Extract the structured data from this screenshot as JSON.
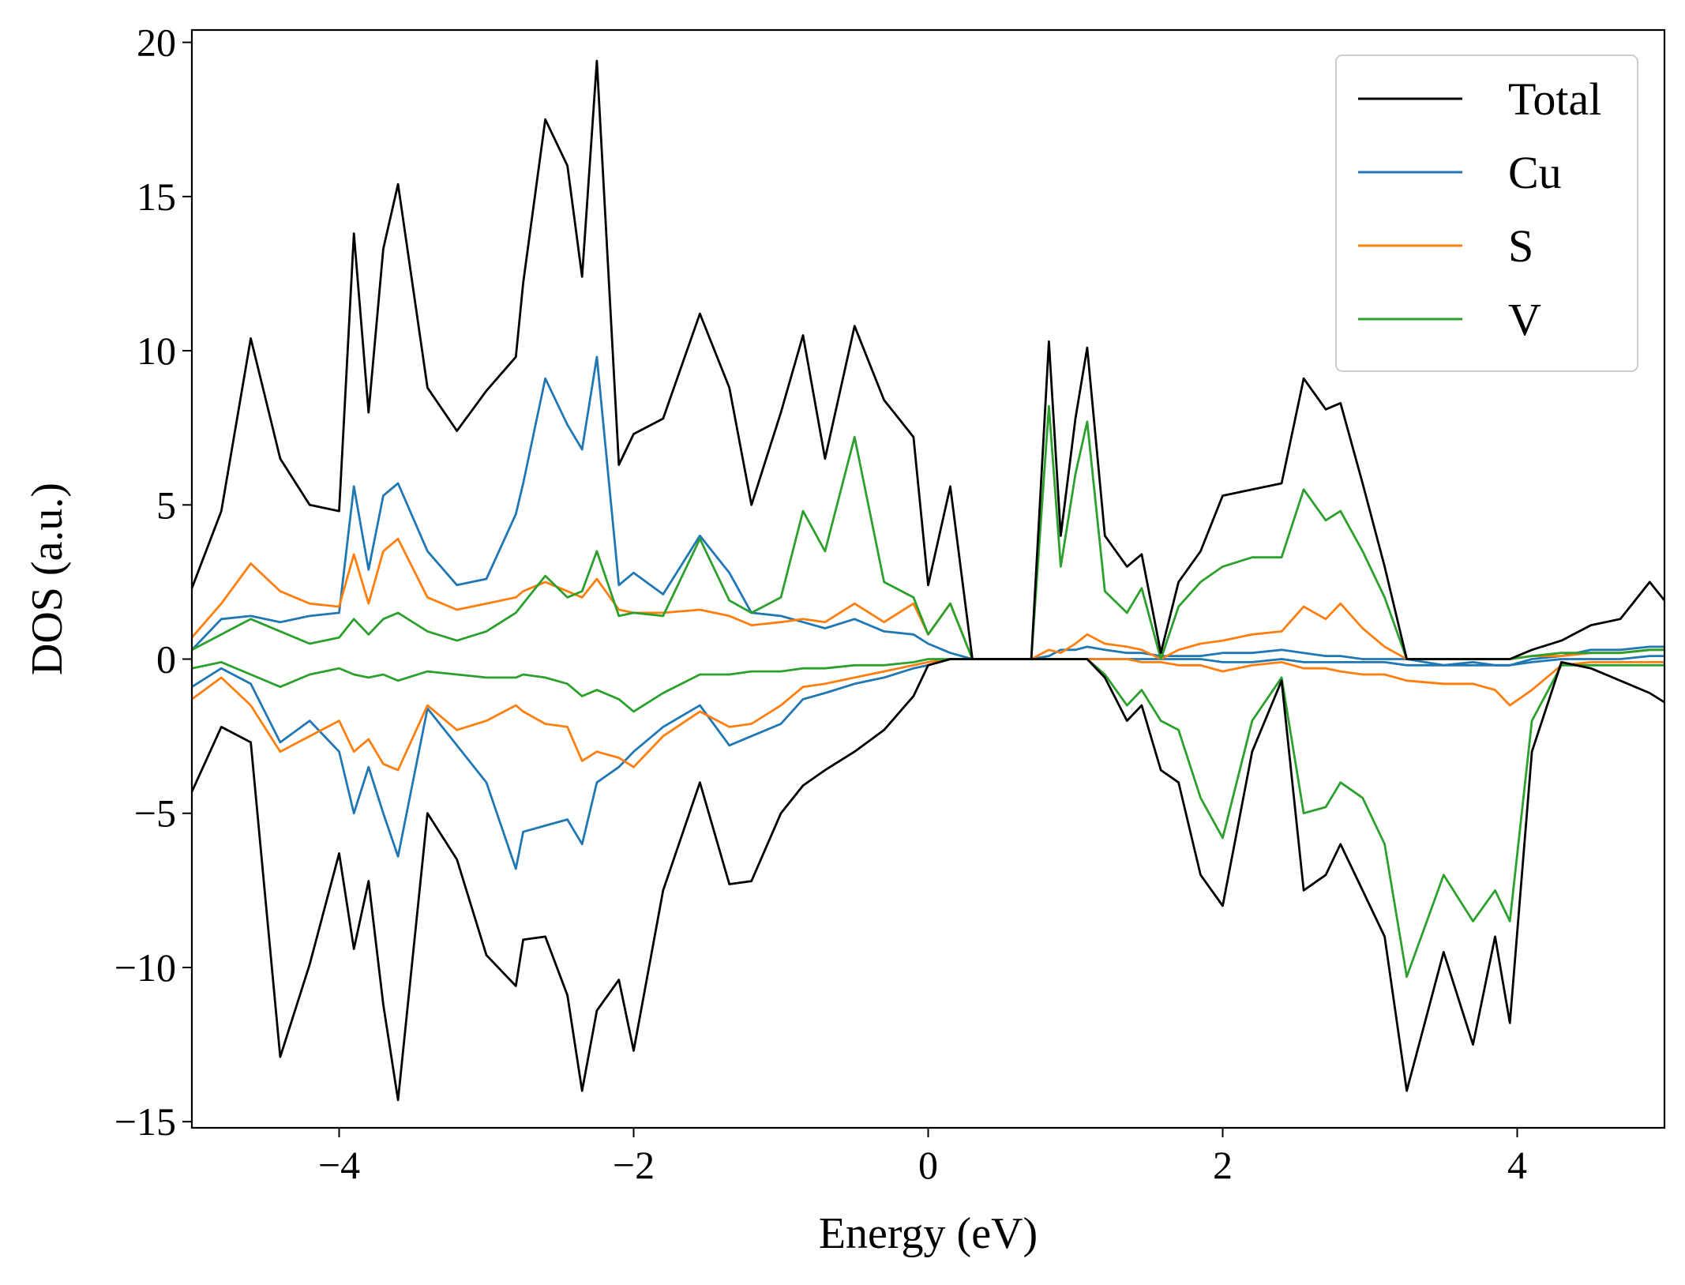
{
  "chart_data": {
    "type": "line",
    "xlabel": "Energy (eV)",
    "ylabel": "DOS (a.u.)",
    "xlim": [
      -5,
      5
    ],
    "ylim": [
      -15.2,
      20.4
    ],
    "xticks": [
      {
        "value": -4,
        "label": "−4"
      },
      {
        "value": -2,
        "label": "−2"
      },
      {
        "value": 0,
        "label": "0"
      },
      {
        "value": 2,
        "label": "2"
      },
      {
        "value": 4,
        "label": "4"
      }
    ],
    "yticks": [
      {
        "value": 20,
        "label": "20"
      },
      {
        "value": 15,
        "label": "15"
      },
      {
        "value": 10,
        "label": "10"
      },
      {
        "value": 5,
        "label": "5"
      },
      {
        "value": 0,
        "label": "0"
      },
      {
        "value": -5,
        "label": "−5"
      },
      {
        "value": -10,
        "label": "−10"
      },
      {
        "value": -15,
        "label": "−15"
      }
    ],
    "legend_position": "top-right",
    "grid": false,
    "x": [
      -5.0,
      -4.8,
      -4.6,
      -4.4,
      -4.2,
      -4.0,
      -3.9,
      -3.8,
      -3.7,
      -3.6,
      -3.4,
      -3.2,
      -3.0,
      -2.8,
      -2.75,
      -2.6,
      -2.45,
      -2.35,
      -2.25,
      -2.1,
      -2.0,
      -1.8,
      -1.55,
      -1.35,
      -1.2,
      -1.0,
      -0.85,
      -0.7,
      -0.5,
      -0.3,
      -0.1,
      0.0,
      0.15,
      0.3,
      0.5,
      0.7,
      0.82,
      0.9,
      1.0,
      1.08,
      1.2,
      1.35,
      1.45,
      1.58,
      1.7,
      1.85,
      2.0,
      2.2,
      2.4,
      2.55,
      2.7,
      2.8,
      2.95,
      3.1,
      3.25,
      3.5,
      3.7,
      3.85,
      3.95,
      4.1,
      4.3,
      4.5,
      4.7,
      4.9,
      5.0
    ],
    "series": [
      {
        "name": "Total",
        "color": "#000000",
        "up": [
          2.3,
          4.8,
          10.4,
          6.5,
          5.0,
          4.8,
          13.8,
          8.0,
          13.3,
          15.4,
          8.8,
          7.4,
          8.7,
          9.8,
          12.2,
          17.5,
          16.0,
          12.4,
          19.4,
          6.3,
          7.3,
          7.8,
          11.2,
          8.8,
          5.0,
          8.0,
          10.5,
          6.5,
          10.8,
          8.4,
          7.2,
          2.4,
          5.6,
          0.0,
          0.0,
          0.0,
          10.3,
          4.0,
          7.8,
          10.1,
          4.0,
          3.0,
          3.4,
          0.2,
          2.5,
          3.5,
          5.3,
          5.5,
          5.7,
          9.1,
          8.1,
          8.3,
          5.7,
          3.0,
          0.0,
          0.0,
          0.0,
          0.0,
          0.0,
          0.3,
          0.6,
          1.1,
          1.3,
          2.5,
          1.9
        ],
        "down": [
          -4.3,
          -2.2,
          -2.7,
          -12.9,
          -9.9,
          -6.3,
          -9.4,
          -7.2,
          -11.2,
          -14.3,
          -5.0,
          -6.5,
          -9.6,
          -10.6,
          -9.1,
          -9.0,
          -10.9,
          -14.0,
          -11.4,
          -10.4,
          -12.7,
          -7.5,
          -4.0,
          -7.3,
          -7.2,
          -5.0,
          -4.1,
          -3.6,
          -3.0,
          -2.3,
          -1.2,
          -0.2,
          0.0,
          0.0,
          0.0,
          0.0,
          0.0,
          0.0,
          0.0,
          0.0,
          -0.6,
          -2.0,
          -1.5,
          -3.6,
          -4.0,
          -7.0,
          -8.0,
          -3.0,
          -0.7,
          -7.5,
          -7.0,
          -6.0,
          -7.5,
          -9.0,
          -14.0,
          -9.5,
          -12.5,
          -9.0,
          -11.8,
          -3.0,
          -0.1,
          -0.3,
          -0.7,
          -1.1,
          -1.4
        ]
      },
      {
        "name": "Cu",
        "color": "#1f77b4",
        "up": [
          0.3,
          1.3,
          1.4,
          1.2,
          1.4,
          1.5,
          5.6,
          2.9,
          5.3,
          5.7,
          3.5,
          2.4,
          2.6,
          4.7,
          5.7,
          9.1,
          7.6,
          6.8,
          9.8,
          2.4,
          2.8,
          2.1,
          4.0,
          2.8,
          1.5,
          1.4,
          1.2,
          1.0,
          1.3,
          0.9,
          0.8,
          0.5,
          0.2,
          0.0,
          0.0,
          0.0,
          0.1,
          0.3,
          0.3,
          0.4,
          0.3,
          0.2,
          0.2,
          0.1,
          0.1,
          0.1,
          0.2,
          0.2,
          0.3,
          0.2,
          0.1,
          0.1,
          0.0,
          0.0,
          0.0,
          -0.2,
          -0.1,
          -0.2,
          -0.2,
          0.0,
          0.1,
          0.3,
          0.3,
          0.4,
          0.4
        ],
        "down": [
          -0.9,
          -0.3,
          -0.8,
          -2.7,
          -2.0,
          -3.0,
          -5.0,
          -3.5,
          -5.0,
          -6.4,
          -1.6,
          -2.8,
          -4.0,
          -6.8,
          -5.6,
          -5.4,
          -5.2,
          -6.0,
          -4.0,
          -3.5,
          -3.0,
          -2.2,
          -1.5,
          -2.8,
          -2.5,
          -2.1,
          -1.3,
          -1.1,
          -0.8,
          -0.6,
          -0.3,
          -0.2,
          0.0,
          0.0,
          0.0,
          0.0,
          0.0,
          0.0,
          0.0,
          0.0,
          0.0,
          0.0,
          0.0,
          0.0,
          0.0,
          0.0,
          -0.1,
          -0.1,
          0.0,
          -0.1,
          -0.1,
          -0.1,
          -0.1,
          -0.1,
          -0.2,
          -0.2,
          -0.2,
          -0.2,
          -0.2,
          -0.1,
          0.0,
          0.0,
          0.0,
          0.1,
          0.1
        ]
      },
      {
        "name": "S",
        "color": "#ff7f0e",
        "up": [
          0.7,
          1.8,
          3.1,
          2.2,
          1.8,
          1.7,
          3.4,
          1.8,
          3.5,
          3.9,
          2.0,
          1.6,
          1.8,
          2.0,
          2.2,
          2.5,
          2.2,
          2.0,
          2.6,
          1.6,
          1.5,
          1.5,
          1.6,
          1.4,
          1.1,
          1.2,
          1.3,
          1.2,
          1.8,
          1.2,
          1.8,
          0.8,
          1.8,
          0.0,
          0.0,
          0.0,
          0.3,
          0.2,
          0.5,
          0.8,
          0.5,
          0.4,
          0.3,
          0.0,
          0.3,
          0.5,
          0.6,
          0.8,
          0.9,
          1.7,
          1.3,
          1.8,
          1.0,
          0.4,
          0.0,
          0.0,
          0.0,
          0.0,
          0.0,
          0.1,
          0.1,
          0.2,
          0.2,
          0.3,
          0.3
        ],
        "down": [
          -1.3,
          -0.6,
          -1.5,
          -3.0,
          -2.5,
          -2.0,
          -3.0,
          -2.6,
          -3.4,
          -3.6,
          -1.5,
          -2.3,
          -2.0,
          -1.5,
          -1.7,
          -2.1,
          -2.2,
          -3.3,
          -3.0,
          -3.2,
          -3.5,
          -2.5,
          -1.7,
          -2.2,
          -2.1,
          -1.5,
          -0.9,
          -0.8,
          -0.6,
          -0.4,
          -0.2,
          -0.1,
          0.0,
          0.0,
          0.0,
          0.0,
          0.0,
          0.0,
          0.0,
          0.0,
          0.0,
          0.0,
          -0.1,
          -0.1,
          -0.2,
          -0.2,
          -0.4,
          -0.2,
          -0.1,
          -0.3,
          -0.3,
          -0.4,
          -0.5,
          -0.5,
          -0.7,
          -0.8,
          -0.8,
          -1.0,
          -1.5,
          -1.0,
          -0.2,
          -0.1,
          -0.1,
          -0.1,
          -0.1
        ]
      },
      {
        "name": "V",
        "color": "#2ca02c",
        "up": [
          0.3,
          0.8,
          1.3,
          0.9,
          0.5,
          0.7,
          1.3,
          0.8,
          1.3,
          1.5,
          0.9,
          0.6,
          0.9,
          1.5,
          1.8,
          2.7,
          2.0,
          2.2,
          3.5,
          1.4,
          1.5,
          1.4,
          3.9,
          1.9,
          1.5,
          2.0,
          4.8,
          3.5,
          7.2,
          2.5,
          2.0,
          0.8,
          1.8,
          0.0,
          0.0,
          0.0,
          8.2,
          3.0,
          6.0,
          7.7,
          2.2,
          1.5,
          2.3,
          0.0,
          1.7,
          2.5,
          3.0,
          3.3,
          3.3,
          5.5,
          4.5,
          4.8,
          3.5,
          2.0,
          0.0,
          0.0,
          0.0,
          0.0,
          0.0,
          0.1,
          0.2,
          0.2,
          0.2,
          0.3,
          0.3
        ],
        "down": [
          -0.3,
          -0.1,
          -0.5,
          -0.9,
          -0.5,
          -0.3,
          -0.5,
          -0.6,
          -0.5,
          -0.7,
          -0.4,
          -0.5,
          -0.6,
          -0.6,
          -0.5,
          -0.6,
          -0.8,
          -1.2,
          -1.0,
          -1.3,
          -1.7,
          -1.1,
          -0.5,
          -0.5,
          -0.4,
          -0.4,
          -0.3,
          -0.3,
          -0.2,
          -0.2,
          -0.1,
          0.0,
          0.0,
          0.0,
          0.0,
          0.0,
          0.0,
          0.0,
          0.0,
          0.0,
          -0.5,
          -1.5,
          -1.0,
          -2.0,
          -2.3,
          -4.5,
          -5.8,
          -2.0,
          -0.6,
          -5.0,
          -4.8,
          -4.0,
          -4.5,
          -6.0,
          -10.3,
          -7.0,
          -8.5,
          -7.5,
          -8.5,
          -2.0,
          -0.2,
          -0.2,
          -0.2,
          -0.2,
          -0.2
        ]
      }
    ]
  }
}
